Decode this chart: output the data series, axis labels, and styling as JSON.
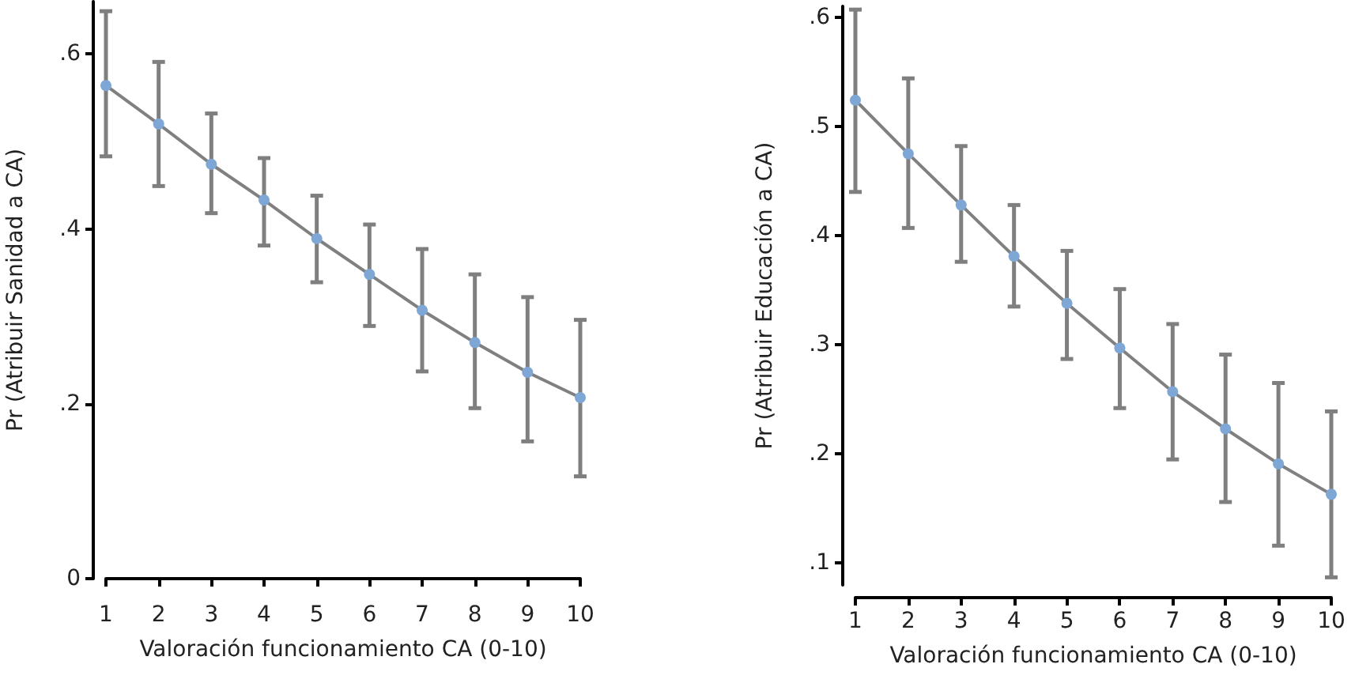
{
  "chart_data": [
    {
      "type": "line",
      "xlabel": "Valoración funcionamiento CA (0-10)",
      "ylabel": "Pr (Atribuir Sanidad a CA)",
      "x": [
        1,
        2,
        3,
        4,
        5,
        6,
        7,
        8,
        9,
        10
      ],
      "series": [
        {
          "color": "#7fa7d6",
          "values": [
            0.564,
            0.52,
            0.474,
            0.433,
            0.389,
            0.348,
            0.307,
            0.27,
            0.236,
            0.207
          ],
          "errors": [
            [
              0.483,
              0.649
            ],
            [
              0.449,
              0.591
            ],
            [
              0.418,
              0.532
            ],
            [
              0.381,
              0.481
            ],
            [
              0.339,
              0.438
            ],
            [
              0.289,
              0.405
            ],
            [
              0.237,
              0.377
            ],
            [
              0.195,
              0.348
            ],
            [
              0.157,
              0.322
            ],
            [
              0.117,
              0.296
            ]
          ]
        }
      ],
      "marker": "circle",
      "line_style": "solid",
      "xlim": [
        1,
        10
      ],
      "xticks": [
        1,
        2,
        3,
        4,
        5,
        6,
        7,
        8,
        9,
        10
      ],
      "ylim": [
        0,
        0.66
      ],
      "yticks": [
        0,
        {
          "value": 0.2,
          "label": ".2"
        },
        {
          "value": 0.4,
          "label": ".4"
        },
        {
          "value": 0.6,
          "label": ".6"
        }
      ]
    },
    {
      "type": "line",
      "xlabel": "Valoración funcionamiento CA (0-10)",
      "ylabel": "Pr (Atribuir Educación a CA)",
      "x": [
        1,
        2,
        3,
        4,
        5,
        6,
        7,
        8,
        9,
        10
      ],
      "series": [
        {
          "color": "#7fa7d6",
          "values": [
            0.524,
            0.475,
            0.428,
            0.381,
            0.338,
            0.297,
            0.257,
            0.223,
            0.191,
            0.163
          ],
          "errors": [
            [
              0.44,
              0.607
            ],
            [
              0.407,
              0.544
            ],
            [
              0.376,
              0.482
            ],
            [
              0.335,
              0.428
            ],
            [
              0.287,
              0.386
            ],
            [
              0.242,
              0.351
            ],
            [
              0.195,
              0.319
            ],
            [
              0.156,
              0.291
            ],
            [
              0.116,
              0.265
            ],
            [
              0.087,
              0.239
            ]
          ]
        }
      ],
      "marker": "circle",
      "line_style": "solid",
      "xlim": [
        1,
        10
      ],
      "xticks": [
        1,
        2,
        3,
        4,
        5,
        6,
        7,
        8,
        9,
        10
      ],
      "ylim": [
        0.08,
        0.61
      ],
      "yticks": [
        {
          "value": 0.1,
          "label": ".1"
        },
        {
          "value": 0.2,
          "label": ".2"
        },
        {
          "value": 0.3,
          "label": ".3"
        },
        {
          "value": 0.4,
          "label": ".4"
        },
        {
          "value": 0.5,
          "label": ".5"
        },
        {
          "value": 0.6,
          "label": ".6"
        }
      ]
    }
  ]
}
